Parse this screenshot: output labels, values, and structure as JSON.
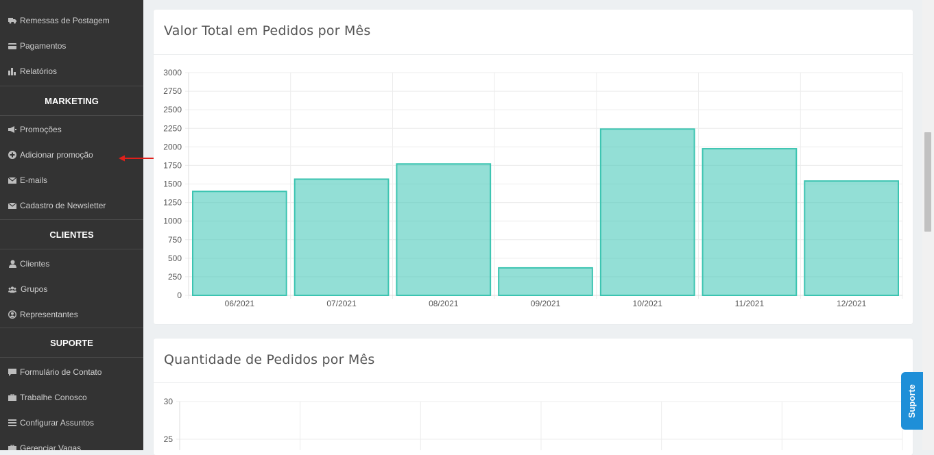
{
  "sidebar": {
    "top_items": [
      {
        "label": "Remessas de Postagem",
        "icon": "truck-icon"
      },
      {
        "label": "Pagamentos",
        "icon": "credit-card-icon"
      },
      {
        "label": "Relatórios",
        "icon": "bar-chart-icon"
      }
    ],
    "marketing": {
      "heading": "MARKETING",
      "items": [
        {
          "label": "Promoções",
          "icon": "megaphone-icon"
        },
        {
          "label": "Adicionar promoção",
          "icon": "plus-circle-icon"
        },
        {
          "label": "E-mails",
          "icon": "envelope-icon"
        },
        {
          "label": "Cadastro de Newsletter",
          "icon": "envelope-icon"
        }
      ]
    },
    "clientes": {
      "heading": "CLIENTES",
      "items": [
        {
          "label": "Clientes",
          "icon": "user-icon"
        },
        {
          "label": "Grupos",
          "icon": "users-icon"
        },
        {
          "label": "Representantes",
          "icon": "user-circle-icon"
        }
      ]
    },
    "suporte": {
      "heading": "SUPORTE",
      "items": [
        {
          "label": "Formulário de Contato",
          "icon": "comment-icon"
        },
        {
          "label": "Trabalhe Conosco",
          "icon": "briefcase-icon"
        },
        {
          "label": "Configurar Assuntos",
          "icon": "list-icon"
        },
        {
          "label": "Gerenciar Vagas",
          "icon": "briefcase-icon"
        }
      ]
    }
  },
  "annotation": {
    "arrow_color": "#e0201b"
  },
  "colors": {
    "bar_fill": "rgba(75,202,186,0.6)",
    "bar_stroke": "#3cc4b1",
    "sidebar_bg": "#333333",
    "support_tab": "#1e8fd8"
  },
  "chart1": {
    "title": "Valor Total em Pedidos por Mês"
  },
  "chart2": {
    "title": "Quantidade de Pedidos por Mês"
  },
  "support_tab": {
    "label": "Suporte"
  },
  "chart_data": [
    {
      "type": "bar",
      "title": "Valor Total em Pedidos por Mês",
      "categories": [
        "06/2021",
        "07/2021",
        "08/2021",
        "09/2021",
        "10/2021",
        "11/2021",
        "12/2021"
      ],
      "values": [
        1400,
        1565,
        1770,
        370,
        2240,
        1975,
        1540
      ],
      "ylim": [
        0,
        3000
      ],
      "yticks": [
        0,
        250,
        500,
        750,
        1000,
        1250,
        1500,
        1750,
        2000,
        2250,
        2500,
        2750,
        3000
      ],
      "grid": true
    },
    {
      "type": "bar",
      "title": "Quantidade de Pedidos por Mês",
      "ylim": [
        0,
        30
      ],
      "yticks_visible": [
        25,
        30
      ],
      "grid": true
    }
  ]
}
